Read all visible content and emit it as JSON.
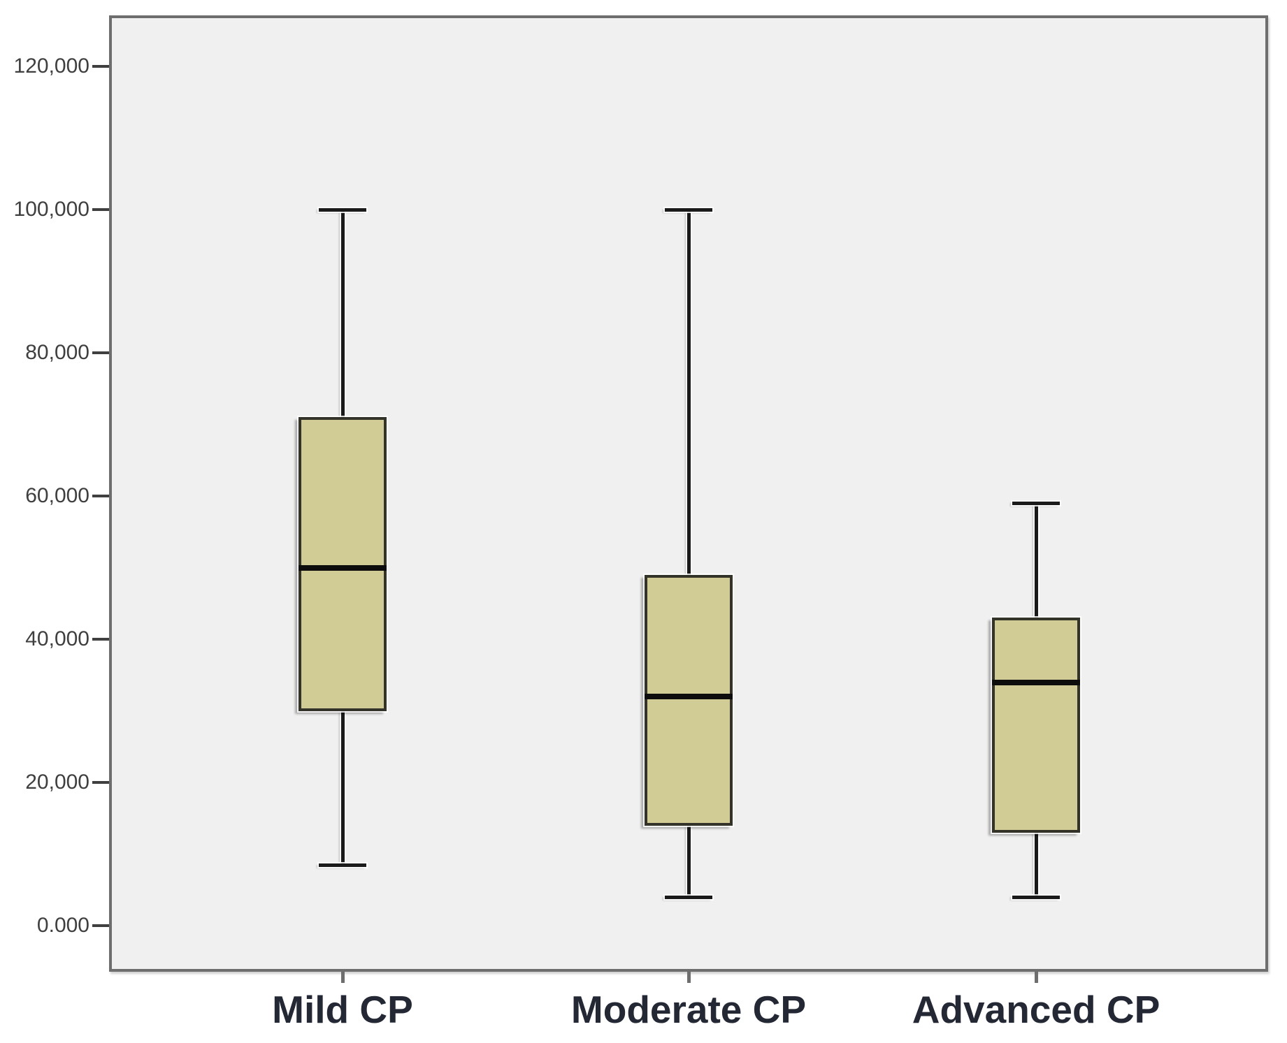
{
  "chart_data": {
    "type": "boxplot",
    "title": "",
    "xlabel": "",
    "ylabel": "",
    "grid": false,
    "legend": false,
    "categories": [
      "Mild CP",
      "Moderate CP",
      "Advanced CP"
    ],
    "series": [
      {
        "name": "Mild CP",
        "whisker_low": 8500,
        "q1": 30000,
        "median": 50000,
        "q3": 71000,
        "whisker_high": 100000
      },
      {
        "name": "Moderate CP",
        "whisker_low": 4000,
        "q1": 14000,
        "median": 32000,
        "q3": 49000,
        "whisker_high": 100000
      },
      {
        "name": "Advanced CP",
        "whisker_low": 4000,
        "q1": 13000,
        "median": 34000,
        "q3": 43000,
        "whisker_high": 59000
      }
    ],
    "y_axis": {
      "tick_labels": [
        "0.000",
        "20,000",
        "40,000",
        "60,000",
        "80,000",
        "100,000",
        "120,000"
      ],
      "tick_values": [
        0,
        20000,
        40000,
        60000,
        80000,
        100000,
        120000
      ],
      "ylim": [
        -6500,
        127000
      ]
    },
    "colors": {
      "page_bg": "#ffffff",
      "plot_bg": "#f0f0f0",
      "plot_border": "#6e6e6e",
      "box_fill": "#d1cc96",
      "box_border": "#33332a",
      "median": "#0d0d0d",
      "whisker": "#1a1a1a",
      "tick_label": "#3f3f3f",
      "category_label": "#232834"
    }
  }
}
